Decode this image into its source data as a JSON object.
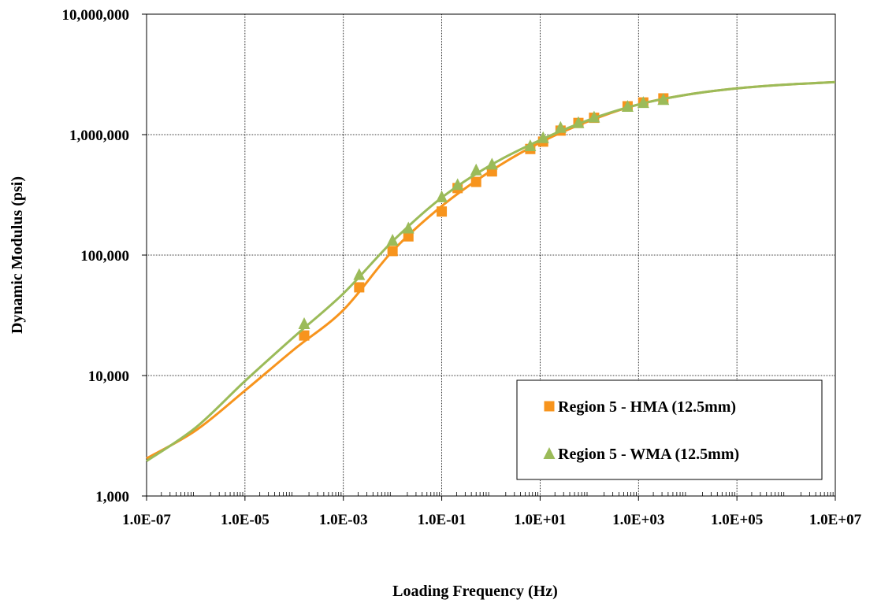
{
  "chart_data": {
    "type": "scatter",
    "xlabel": "Loading Frequency (Hz)",
    "ylabel": "Dynamic Modulus (psi)",
    "xscale": "log",
    "yscale": "log",
    "xlim": [
      1e-07,
      10000000.0
    ],
    "ylim": [
      1000,
      10000000
    ],
    "x_tick_labels": [
      "1.0E-07",
      "1.0E-05",
      "1.0E-03",
      "1.0E-01",
      "1.0E+01",
      "1.0E+03",
      "1.0E+05",
      "1.0E+07"
    ],
    "y_tick_labels": [
      "1,000",
      "10,000",
      "100,000",
      "1,000,000",
      "10,000,000"
    ],
    "grid": true,
    "legend_position": "bottom-right",
    "series": [
      {
        "name": "Region 5 - HMA (12.5mm)",
        "color": "#F7941D",
        "marker": "square",
        "points": [
          {
            "x": 0.00016,
            "y": 21500
          },
          {
            "x": 0.0021,
            "y": 54000
          },
          {
            "x": 0.01,
            "y": 108000
          },
          {
            "x": 0.021,
            "y": 143000
          },
          {
            "x": 0.1,
            "y": 230000
          },
          {
            "x": 0.21,
            "y": 360000
          },
          {
            "x": 0.5,
            "y": 405000
          },
          {
            "x": 1.05,
            "y": 495000
          },
          {
            "x": 6.3,
            "y": 760000
          },
          {
            "x": 11.5,
            "y": 875000
          },
          {
            "x": 26,
            "y": 1080000
          },
          {
            "x": 60,
            "y": 1250000
          },
          {
            "x": 125,
            "y": 1380000
          },
          {
            "x": 600,
            "y": 1720000
          },
          {
            "x": 1250,
            "y": 1850000
          },
          {
            "x": 3200,
            "y": 2000000
          }
        ],
        "curve": [
          {
            "x": 1e-07,
            "y": 2050
          },
          {
            "x": 1e-06,
            "y": 3500
          },
          {
            "x": 1e-05,
            "y": 7500
          },
          {
            "x": 0.0001,
            "y": 16500
          },
          {
            "x": 0.001,
            "y": 35000
          },
          {
            "x": 0.01,
            "y": 108000
          },
          {
            "x": 0.1,
            "y": 255000
          },
          {
            "x": 1,
            "y": 500000
          },
          {
            "x": 10,
            "y": 860000
          },
          {
            "x": 100,
            "y": 1300000
          },
          {
            "x": 1000,
            "y": 1780000
          },
          {
            "x": 10000,
            "y": 2150000
          },
          {
            "x": 100000,
            "y": 2420000
          },
          {
            "x": 1000000,
            "y": 2600000
          },
          {
            "x": 10000000,
            "y": 2730000
          }
        ]
      },
      {
        "name": "Region 5 - WMA (12.5mm)",
        "color": "#9BBB59",
        "marker": "triangle",
        "points": [
          {
            "x": 0.00016,
            "y": 27000
          },
          {
            "x": 0.0021,
            "y": 69000
          },
          {
            "x": 0.01,
            "y": 133000
          },
          {
            "x": 0.021,
            "y": 168000
          },
          {
            "x": 0.1,
            "y": 305000
          },
          {
            "x": 0.21,
            "y": 385000
          },
          {
            "x": 0.5,
            "y": 510000
          },
          {
            "x": 1.05,
            "y": 570000
          },
          {
            "x": 6.3,
            "y": 810000
          },
          {
            "x": 11.5,
            "y": 945000
          },
          {
            "x": 26,
            "y": 1150000
          },
          {
            "x": 60,
            "y": 1260000
          },
          {
            "x": 125,
            "y": 1400000
          },
          {
            "x": 600,
            "y": 1720000
          },
          {
            "x": 1250,
            "y": 1850000
          },
          {
            "x": 3200,
            "y": 1960000
          }
        ],
        "curve": [
          {
            "x": 1e-07,
            "y": 1950
          },
          {
            "x": 1e-06,
            "y": 3700
          },
          {
            "x": 1e-05,
            "y": 9000
          },
          {
            "x": 0.0001,
            "y": 21000
          },
          {
            "x": 0.001,
            "y": 48000
          },
          {
            "x": 0.01,
            "y": 130000
          },
          {
            "x": 0.1,
            "y": 300000
          },
          {
            "x": 1,
            "y": 560000
          },
          {
            "x": 10,
            "y": 900000
          },
          {
            "x": 100,
            "y": 1330000
          },
          {
            "x": 1000,
            "y": 1780000
          },
          {
            "x": 10000,
            "y": 2150000
          },
          {
            "x": 100000,
            "y": 2420000
          },
          {
            "x": 1000000,
            "y": 2600000
          },
          {
            "x": 10000000,
            "y": 2730000
          }
        ]
      }
    ]
  }
}
